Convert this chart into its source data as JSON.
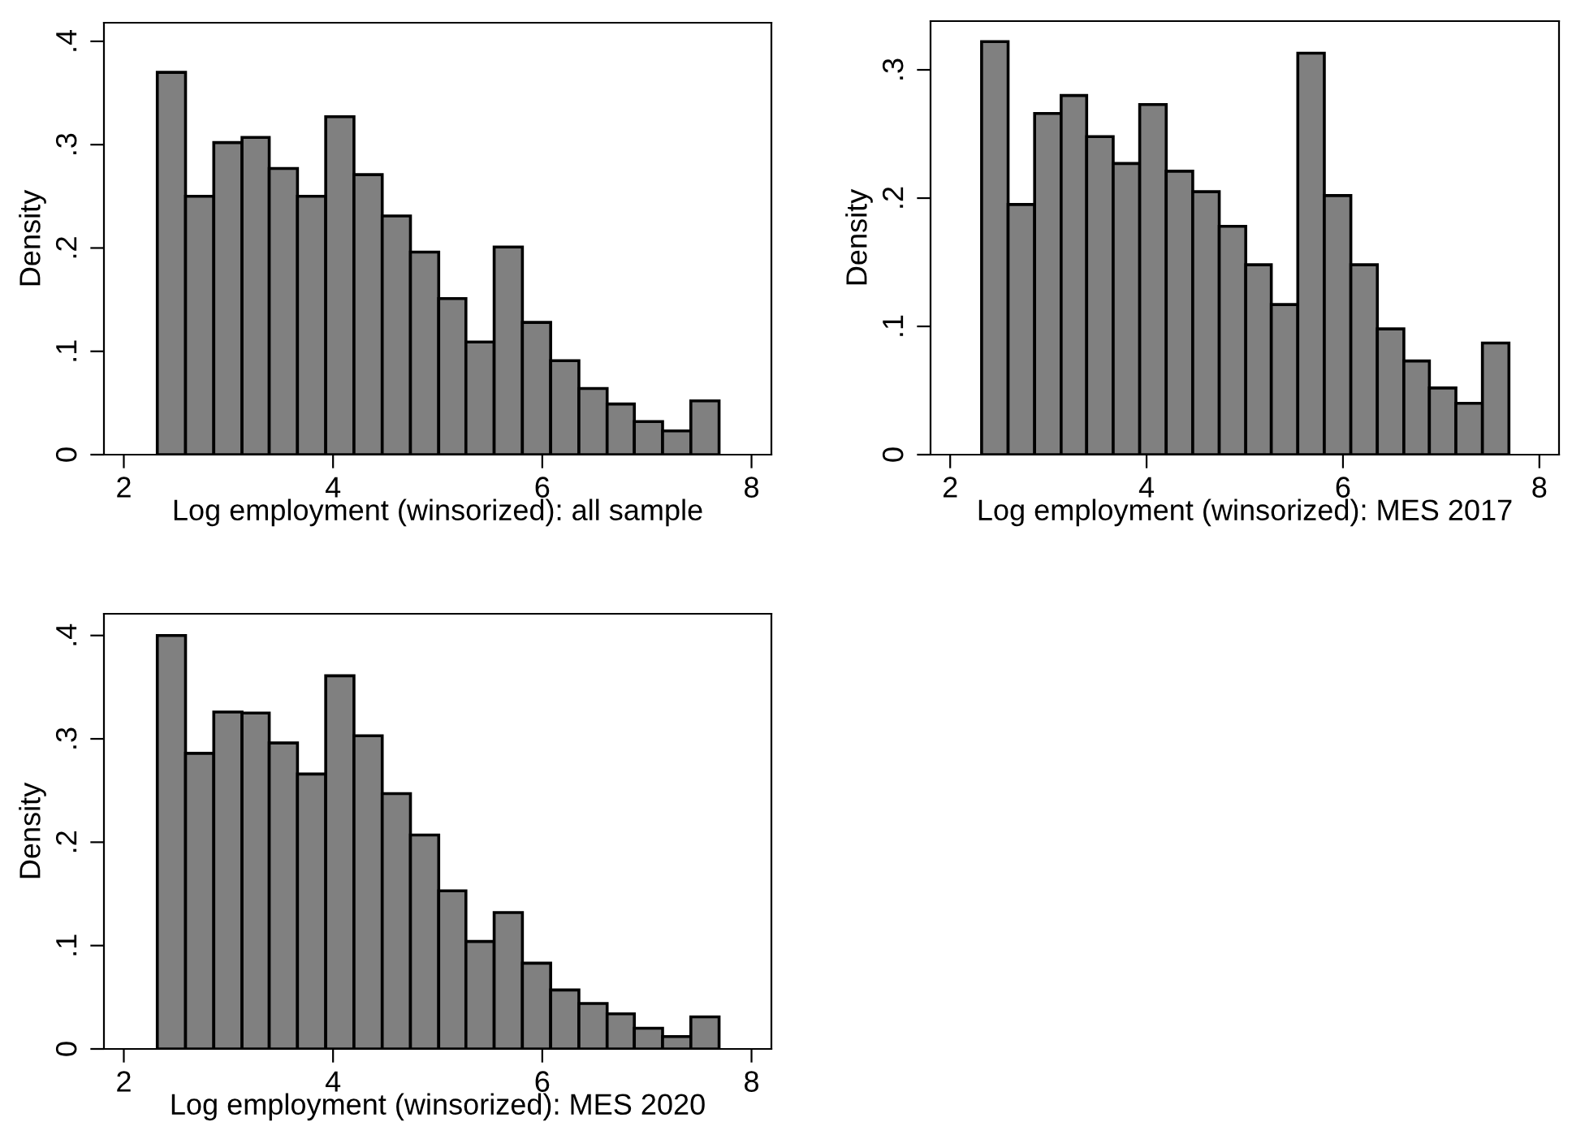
{
  "chart_data": [
    {
      "type": "histogram",
      "xlabel": "Log employment (winsorized): all sample",
      "ylabel": "Density",
      "color": "#808080",
      "bins": [
        2.32,
        2.59,
        2.86,
        3.13,
        3.39,
        3.66,
        3.93,
        4.2,
        4.47,
        4.74,
        5.01,
        5.27,
        5.54,
        5.81,
        6.08,
        6.35,
        6.62,
        6.88,
        7.15,
        7.42,
        7.69
      ],
      "values": [
        0.37,
        0.25,
        0.302,
        0.307,
        0.277,
        0.25,
        0.327,
        0.271,
        0.231,
        0.196,
        0.151,
        0.109,
        0.201,
        0.128,
        0.091,
        0.064,
        0.049,
        0.032,
        0.023,
        0.052
      ],
      "xlim": [
        1.81,
        8.19
      ],
      "ylim": [
        0,
        0.418
      ],
      "xticks": [
        2,
        4,
        6,
        8
      ],
      "yticks": [
        0,
        {
          "value": 0.1,
          "label": ".1"
        },
        {
          "value": 0.2,
          "label": ".2"
        },
        {
          "value": 0.3,
          "label": ".3"
        },
        {
          "value": 0.4,
          "label": ".4"
        }
      ],
      "grid": false
    },
    {
      "type": "histogram",
      "xlabel": "Log employment (winsorized): MES 2017",
      "ylabel": "Density",
      "color": "#808080",
      "bins": [
        2.32,
        2.59,
        2.86,
        3.13,
        3.39,
        3.66,
        3.93,
        4.2,
        4.47,
        4.74,
        5.01,
        5.27,
        5.54,
        5.81,
        6.08,
        6.35,
        6.62,
        6.88,
        7.15,
        7.42,
        7.69
      ],
      "values": [
        0.322,
        0.195,
        0.266,
        0.28,
        0.248,
        0.227,
        0.273,
        0.221,
        0.205,
        0.178,
        0.148,
        0.117,
        0.313,
        0.202,
        0.148,
        0.098,
        0.073,
        0.052,
        0.04,
        0.087
      ],
      "xlim": [
        1.8,
        8.2
      ],
      "ylim": [
        0,
        0.338
      ],
      "xticks": [
        2,
        4,
        6,
        8
      ],
      "yticks": [
        0,
        {
          "value": 0.1,
          "label": ".1"
        },
        {
          "value": 0.2,
          "label": ".2"
        },
        {
          "value": 0.3,
          "label": ".3"
        }
      ],
      "grid": false
    },
    {
      "type": "histogram",
      "xlabel": "Log employment (winsorized): MES 2020",
      "ylabel": "Density",
      "color": "#808080",
      "bins": [
        2.32,
        2.59,
        2.86,
        3.13,
        3.39,
        3.66,
        3.93,
        4.2,
        4.47,
        4.74,
        5.01,
        5.27,
        5.54,
        5.81,
        6.08,
        6.35,
        6.62,
        6.88,
        7.15,
        7.42,
        7.69
      ],
      "values": [
        0.4,
        0.286,
        0.326,
        0.325,
        0.296,
        0.266,
        0.361,
        0.303,
        0.247,
        0.207,
        0.153,
        0.104,
        0.132,
        0.083,
        0.057,
        0.044,
        0.034,
        0.02,
        0.012,
        0.031
      ],
      "xlim": [
        1.81,
        8.19
      ],
      "ylim": [
        0,
        0.421
      ],
      "xticks": [
        2,
        4,
        6,
        8
      ],
      "yticks": [
        0,
        {
          "value": 0.1,
          "label": ".1"
        },
        {
          "value": 0.2,
          "label": ".2"
        },
        {
          "value": 0.3,
          "label": ".3"
        },
        {
          "value": 0.4,
          "label": ".4"
        }
      ],
      "grid": false
    }
  ]
}
